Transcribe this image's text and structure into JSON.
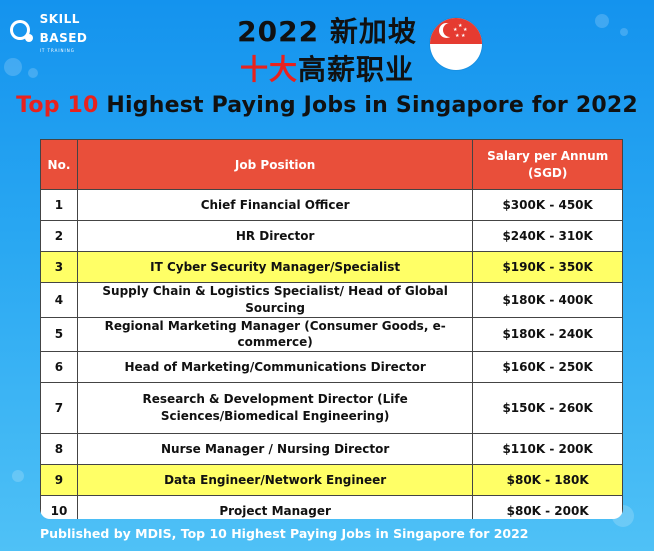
{
  "logo": {
    "name": "SKILL BASED",
    "tagline": "IT TRAINING"
  },
  "header": {
    "title_line1": "2022 新加坡",
    "title_line2_red": "十大",
    "title_line2_black": "高薪职业",
    "headline_red": "Top 10",
    "headline_black": " Highest Paying Jobs in Singapore for 2022"
  },
  "colors": {
    "background": "#1493ee",
    "header_row": "#e94f3a",
    "highlight": "#ffff66",
    "accent_red": "#e8221e"
  },
  "table": {
    "headers": [
      "No.",
      "Job Position",
      "Salary per Annum (SGD)"
    ],
    "rows": [
      {
        "no": "1",
        "position": "Chief Financial Officer",
        "salary": "$300K - 450K",
        "highlight": false
      },
      {
        "no": "2",
        "position": "HR Director",
        "salary": "$240K - 310K",
        "highlight": false
      },
      {
        "no": "3",
        "position": "IT Cyber Security Manager/Specialist",
        "salary": "$190K - 350K",
        "highlight": true
      },
      {
        "no": "4",
        "position": "Supply Chain & Logistics Specialist/ Head of Global Sourcing",
        "salary": "$180K - 400K",
        "highlight": false
      },
      {
        "no": "5",
        "position": "Regional Marketing Manager (Consumer Goods, e-commerce)",
        "salary": "$180K - 240K",
        "highlight": false
      },
      {
        "no": "6",
        "position": "Head of Marketing/Communications Director",
        "salary": "$160K - 250K",
        "highlight": false
      },
      {
        "no": "7",
        "position": "Research & Development Director (Life Sciences/Biomedical Engineering)",
        "salary": "$150K - 260K",
        "highlight": false
      },
      {
        "no": "8",
        "position": "Nurse Manager / Nursing Director",
        "salary": "$110K - 200K",
        "highlight": false
      },
      {
        "no": "9",
        "position": "Data Engineer/Network Engineer",
        "salary": "$80K - 180K",
        "highlight": true
      },
      {
        "no": "10",
        "position": "Project Manager",
        "salary": "$80K - 200K",
        "highlight": false
      }
    ]
  },
  "footer": {
    "text": "Published by MDIS, Top 10 Highest Paying Jobs in Singapore for 2022"
  }
}
